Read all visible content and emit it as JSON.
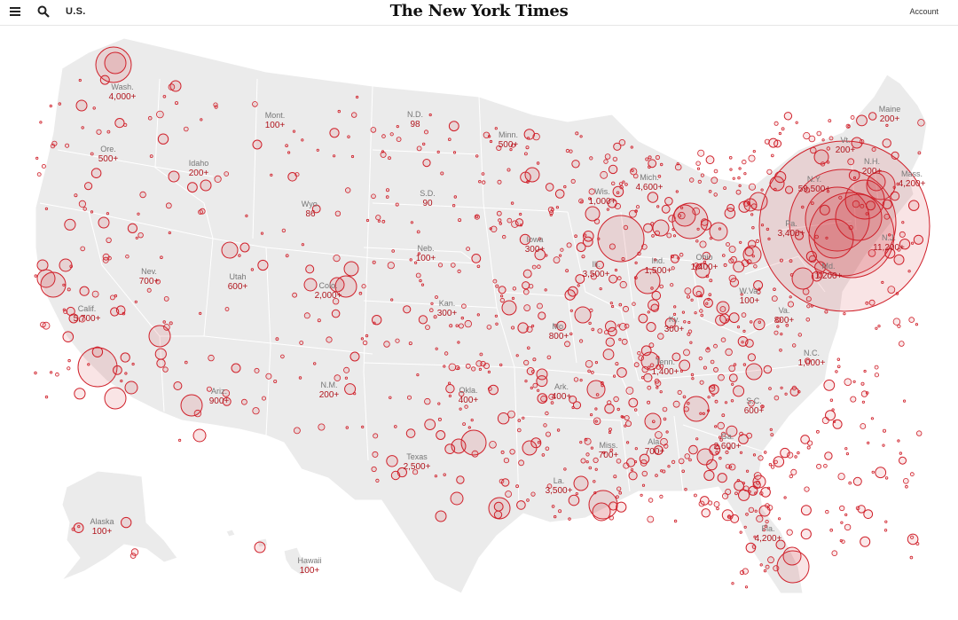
{
  "header": {
    "section": "U.S.",
    "masthead": "The New York Times",
    "account": "Account",
    "icons": [
      "menu-icon",
      "search-icon"
    ]
  },
  "map": {
    "bubble_color": "#d0202a",
    "fill_color": "#ebebeb",
    "states": [
      {
        "name": "Wash.",
        "value": "4,000+"
      },
      {
        "name": "Ore.",
        "value": "500+"
      },
      {
        "name": "Calif.",
        "value": "5,700+"
      },
      {
        "name": "Idaho",
        "value": "200+"
      },
      {
        "name": "Nev.",
        "value": "700+"
      },
      {
        "name": "Mont.",
        "value": "100+"
      },
      {
        "name": "Wyo.",
        "value": "86"
      },
      {
        "name": "Utah",
        "value": "600+"
      },
      {
        "name": "Colo.",
        "value": "2,000+"
      },
      {
        "name": "Ariz.",
        "value": "900+"
      },
      {
        "name": "N.M.",
        "value": "200+"
      },
      {
        "name": "N.D.",
        "value": "98"
      },
      {
        "name": "S.D.",
        "value": "90"
      },
      {
        "name": "Neb.",
        "value": "100+"
      },
      {
        "name": "Kan.",
        "value": "300+"
      },
      {
        "name": "Okla.",
        "value": "400+"
      },
      {
        "name": "Texas",
        "value": "2,500+"
      },
      {
        "name": "Minn.",
        "value": "500+"
      },
      {
        "name": "Iowa",
        "value": "300+"
      },
      {
        "name": "Mo.",
        "value": "800+"
      },
      {
        "name": "Ark.",
        "value": "400+"
      },
      {
        "name": "La.",
        "value": "3,500+"
      },
      {
        "name": "Wis.",
        "value": "1,000+"
      },
      {
        "name": "Ill.",
        "value": "3,500+"
      },
      {
        "name": "Mich.",
        "value": "4,600+"
      },
      {
        "name": "Ind.",
        "value": "1,500+"
      },
      {
        "name": "Ohio",
        "value": "1,400+"
      },
      {
        "name": "Ky.",
        "value": "300+"
      },
      {
        "name": "Tenn.",
        "value": "1,400+"
      },
      {
        "name": "Miss.",
        "value": "700+"
      },
      {
        "name": "Ala.",
        "value": "700+"
      },
      {
        "name": "Ga.",
        "value": "2,600+"
      },
      {
        "name": "Fla.",
        "value": "4,200+"
      },
      {
        "name": "S.C.",
        "value": "600+"
      },
      {
        "name": "N.C.",
        "value": "1,000+"
      },
      {
        "name": "Va.",
        "value": "800+"
      },
      {
        "name": "W.Va.",
        "value": "100+"
      },
      {
        "name": "Pa.",
        "value": "3,400+"
      },
      {
        "name": "N.Y.",
        "value": "59,500+"
      },
      {
        "name": "N.J.",
        "value": "11,200+"
      },
      {
        "name": "Md.",
        "value": "1,200+"
      },
      {
        "name": "Mass.",
        "value": "4,200+"
      },
      {
        "name": "N.H.",
        "value": "200+"
      },
      {
        "name": "Vt.",
        "value": "200+"
      },
      {
        "name": "Maine",
        "value": "200+"
      },
      {
        "name": "Alaska",
        "value": "100+"
      },
      {
        "name": "Hawaii",
        "value": "100+"
      }
    ]
  }
}
